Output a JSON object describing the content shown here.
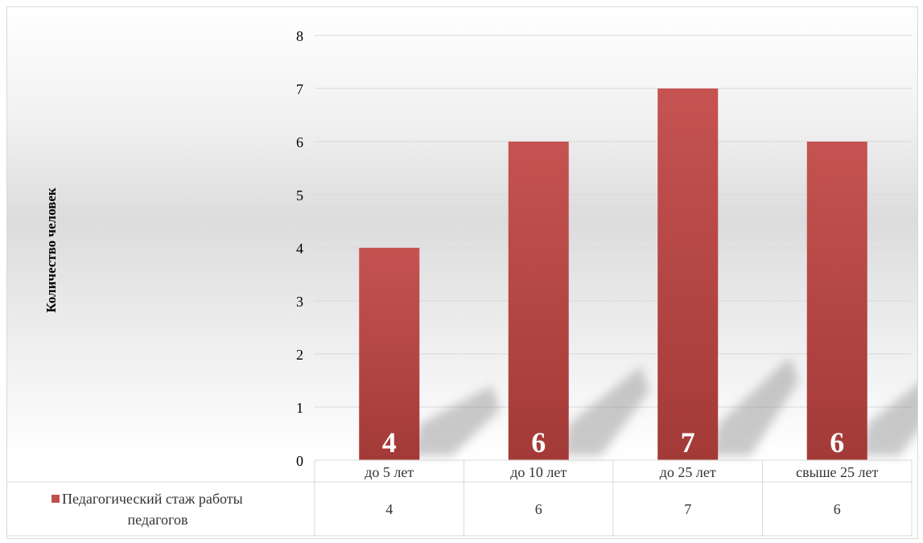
{
  "chart_data": {
    "type": "bar",
    "title": "",
    "xlabel": "",
    "ylabel": "Количество человек",
    "categories": [
      "до 5 лет",
      "до 10 лет",
      "до 25 лет",
      "свыше 25 лет"
    ],
    "series": [
      {
        "name": "Педагогический стаж работы педагогов",
        "values": [
          4,
          6,
          7,
          6
        ],
        "color": "#c0504d"
      }
    ],
    "ylim": [
      0,
      8
    ],
    "yticks": [
      "0",
      "1",
      "2",
      "3",
      "4",
      "5",
      "6",
      "7",
      "8"
    ],
    "data_labels": [
      "4",
      "6",
      "7",
      "6"
    ],
    "grid": true,
    "legend": "data-table",
    "data_table": {
      "legend_label": "Педагогический стаж работы педагогов",
      "values": [
        "4",
        "6",
        "7",
        "6"
      ]
    }
  }
}
